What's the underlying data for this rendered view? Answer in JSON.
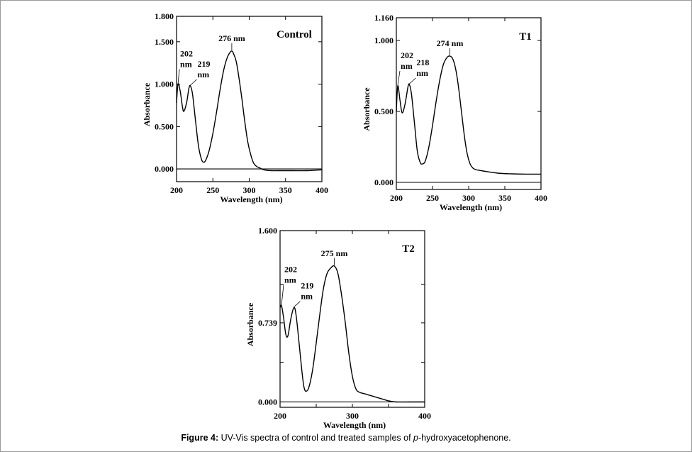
{
  "caption": {
    "label": "Figure 4:",
    "text_before": " UV-Vis spectra of control and treated samples of ",
    "italic": "p",
    "text_after": "-hydroxyacetophenone."
  },
  "chart_data": [
    {
      "type": "line",
      "title": "Control",
      "xlabel": "Wavelength (nm)",
      "ylabel": "Absorbance",
      "xlim": [
        200,
        400
      ],
      "ylim": [
        -0.15,
        1.8
      ],
      "x_ticks": [
        200,
        250,
        300,
        350,
        400
      ],
      "x_tick_labels": [
        "200",
        "250",
        "300",
        "350",
        "400"
      ],
      "y_ticks": [
        0.0,
        0.5,
        1.0,
        1.5,
        1.8
      ],
      "y_tick_labels": [
        "0.000",
        "0.500",
        "1.000",
        "1.500",
        "1.800"
      ],
      "baseline": 0,
      "series": [
        {
          "x": [
            200,
            202,
            205,
            208,
            210,
            214,
            217,
            219,
            222,
            226,
            230,
            234,
            237,
            240,
            245,
            250,
            255,
            260,
            265,
            270,
            274,
            276,
            278,
            282,
            286,
            290,
            294,
            298,
            302,
            306,
            310,
            315,
            320,
            330,
            340,
            360,
            380,
            400
          ],
          "y": [
            0.78,
            1.0,
            0.92,
            0.74,
            0.68,
            0.79,
            0.95,
            0.98,
            0.88,
            0.58,
            0.28,
            0.12,
            0.08,
            0.1,
            0.22,
            0.42,
            0.67,
            0.94,
            1.17,
            1.32,
            1.38,
            1.39,
            1.37,
            1.27,
            1.07,
            0.82,
            0.55,
            0.32,
            0.17,
            0.07,
            0.03,
            0.01,
            -0.01,
            -0.02,
            -0.02,
            -0.02,
            -0.02,
            -0.01
          ]
        }
      ],
      "annotations": [
        {
          "x": 276,
          "y": 1.39,
          "lines": [
            "276 nm"
          ]
        },
        {
          "x": 202,
          "y": 1.0,
          "lines": [
            "202",
            "nm"
          ]
        },
        {
          "x": 219,
          "y": 0.98,
          "lines": [
            "219",
            "nm"
          ]
        }
      ]
    },
    {
      "type": "line",
      "title": "T1",
      "xlabel": "Wavelength (nm)",
      "ylabel": "Absorbance",
      "xlim": [
        200,
        400
      ],
      "ylim": [
        -0.05,
        1.16
      ],
      "x_ticks": [
        200,
        250,
        300,
        350,
        400
      ],
      "x_tick_labels": [
        "200",
        "250",
        "300",
        "350",
        "400"
      ],
      "y_ticks": [
        0.0,
        0.5,
        1.0,
        1.16
      ],
      "y_tick_labels": [
        "0.000",
        "0.500",
        "1.000",
        "1.160"
      ],
      "baseline": 0,
      "series": [
        {
          "x": [
            200,
            202,
            205,
            208,
            212,
            216,
            218,
            221,
            225,
            229,
            233,
            236,
            240,
            245,
            250,
            255,
            260,
            265,
            270,
            274,
            278,
            282,
            286,
            290,
            294,
            298,
            302,
            306,
            310,
            320,
            340,
            360,
            380,
            400
          ],
          "y": [
            0.5,
            0.68,
            0.58,
            0.49,
            0.55,
            0.67,
            0.69,
            0.62,
            0.42,
            0.22,
            0.14,
            0.13,
            0.15,
            0.25,
            0.4,
            0.57,
            0.72,
            0.83,
            0.88,
            0.89,
            0.87,
            0.8,
            0.67,
            0.5,
            0.33,
            0.2,
            0.13,
            0.1,
            0.09,
            0.08,
            0.065,
            0.06,
            0.058,
            0.058
          ]
        }
      ],
      "annotations": [
        {
          "x": 274,
          "y": 0.89,
          "lines": [
            "274 nm"
          ]
        },
        {
          "x": 202,
          "y": 0.68,
          "lines": [
            "202",
            "nm"
          ]
        },
        {
          "x": 218,
          "y": 0.69,
          "lines": [
            "218",
            "nm"
          ]
        }
      ]
    },
    {
      "type": "line",
      "title": "T2",
      "xlabel": "Wavelength (nm)",
      "ylabel": "Absorbance",
      "xlim": [
        200,
        400
      ],
      "ylim": [
        -0.05,
        1.6
      ],
      "x_ticks": [
        200,
        300,
        400
      ],
      "x_tick_labels": [
        "200",
        "300",
        "400"
      ],
      "minor_x_ticks": [
        250,
        350
      ],
      "y_ticks": [
        0.0,
        0.739,
        1.6
      ],
      "y_tick_labels": [
        "0.000",
        "0.739",
        "1.600"
      ],
      "minor_y_ticks": [
        0.37,
        1.1
      ],
      "baseline": 0,
      "series": [
        {
          "x": [
            200,
            202,
            205,
            208,
            211,
            215,
            219,
            222,
            226,
            230,
            233,
            236,
            240,
            245,
            250,
            255,
            260,
            265,
            270,
            275,
            280,
            285,
            290,
            295,
            300,
            305,
            310,
            315,
            320,
            330,
            340,
            350,
            360,
            380,
            400
          ],
          "y": [
            0.88,
            0.9,
            0.78,
            0.63,
            0.62,
            0.78,
            0.88,
            0.82,
            0.57,
            0.3,
            0.14,
            0.1,
            0.14,
            0.3,
            0.55,
            0.82,
            1.06,
            1.2,
            1.25,
            1.27,
            1.2,
            1.0,
            0.75,
            0.46,
            0.24,
            0.12,
            0.09,
            0.08,
            0.07,
            0.05,
            0.03,
            0.01,
            0.0,
            0.0,
            0.0
          ]
        }
      ],
      "annotations": [
        {
          "x": 275,
          "y": 1.27,
          "lines": [
            "275 nm"
          ]
        },
        {
          "x": 202,
          "y": 0.9,
          "lines": [
            "202",
            "nm"
          ]
        },
        {
          "x": 219,
          "y": 0.88,
          "lines": [
            "219",
            "nm"
          ]
        }
      ]
    }
  ]
}
